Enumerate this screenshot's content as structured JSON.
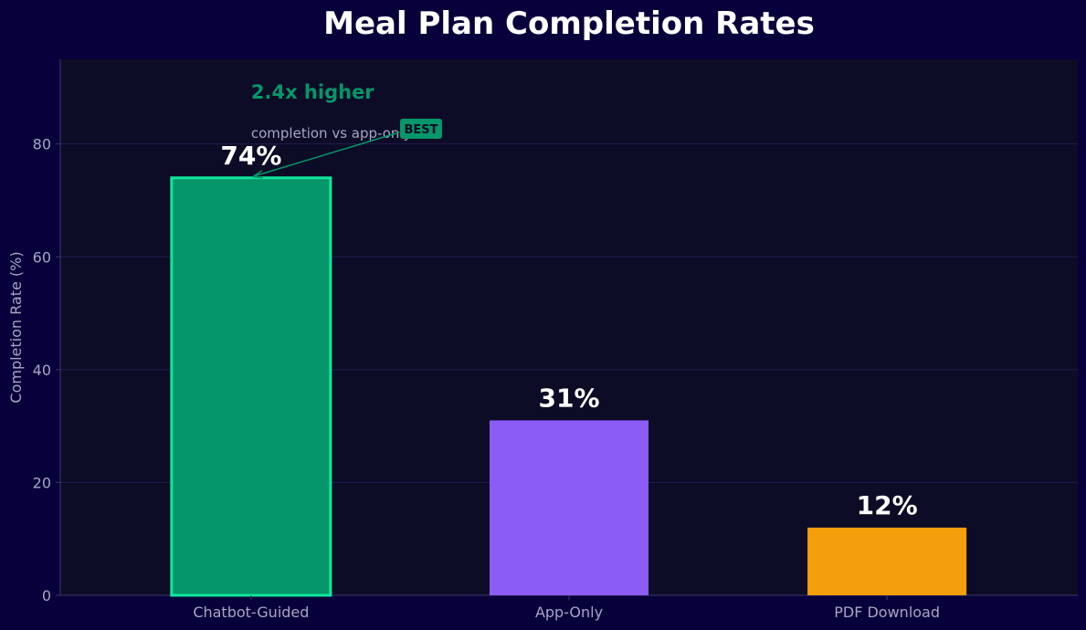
{
  "chart_data": {
    "type": "bar",
    "title": "Meal Plan Completion Rates",
    "xlabel": "",
    "ylabel": "Completion Rate (%)",
    "ylim": [
      0,
      95
    ],
    "yticks": [
      0,
      20,
      40,
      60,
      80
    ],
    "grid": true,
    "categories": [
      "Chatbot-Guided",
      "App-Only",
      "PDF Download"
    ],
    "values": [
      74,
      31,
      12
    ],
    "value_labels": [
      "74%",
      "31%",
      "12%"
    ],
    "colors": [
      "#059669",
      "#8b5cf6",
      "#f59e0b"
    ],
    "highlight": {
      "index": 0,
      "outline_color": "#10e69a"
    },
    "annotation": {
      "headline": "2.4x higher",
      "subtext": "completion vs app-only",
      "badge": "BEST",
      "color": "#059669",
      "subtext_color": "#a6a6c4",
      "target_category": "Chatbot-Guided",
      "target_value": 74
    }
  },
  "theme": {
    "page_bg": "#08003a",
    "plot_bg": "#0d0c26",
    "grid_color": "#221d52",
    "axis_color": "#3a3670",
    "tick_color": "#a6a6c4",
    "title_color": "#ffffff",
    "value_label_color": "#ffffff"
  }
}
